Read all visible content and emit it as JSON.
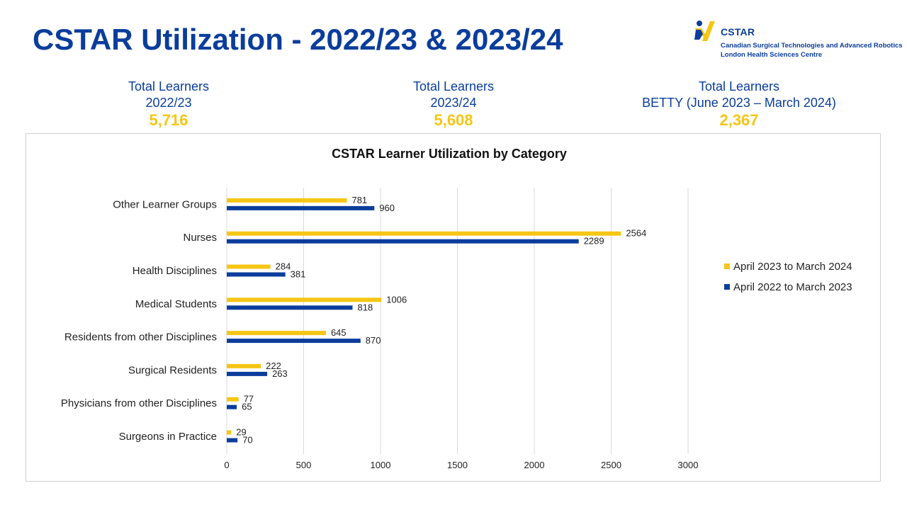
{
  "page": {
    "title": "CSTAR Utilization - 2022/23 & 2023/24"
  },
  "logo": {
    "name": "CSTAR",
    "subtitle_line1": "Canadian Surgical Technologies and Advanced Robotics",
    "subtitle_line2": "London Health Sciences Centre"
  },
  "stats": [
    {
      "label": "Total Learners",
      "period": "2022/23",
      "value": "5,716"
    },
    {
      "label": "Total Learners",
      "period": "2023/24",
      "value": "5,608"
    },
    {
      "label": "Total Learners",
      "period": "BETTY (June 2023 – March 2024)",
      "value": "2,367"
    }
  ],
  "colors": {
    "title_blue": "#0a3d9c",
    "series_2023": "#f6c615",
    "series_2022": "#0a3d9c",
    "grid": "#d9d9d9"
  },
  "chart_data": {
    "type": "bar",
    "orientation": "horizontal",
    "title": "CSTAR Learner Utilization by Category",
    "xlabel": "",
    "ylabel": "",
    "xlim": [
      0,
      3000
    ],
    "xticks": [
      0,
      500,
      1000,
      1500,
      2000,
      2500,
      3000
    ],
    "grid": true,
    "legend_position": "right",
    "categories": [
      "Other Learner Groups",
      "Nurses",
      "Health Disciplines",
      "Medical Students",
      "Residents from other Disciplines",
      "Surgical Residents",
      "Physicians from other Disciplines",
      "Surgeons in Practice"
    ],
    "series": [
      {
        "name": "April 2023 to March 2024",
        "color": "#f6c615",
        "values": [
          781,
          2564,
          284,
          1006,
          645,
          222,
          77,
          29
        ]
      },
      {
        "name": "April 2022 to March 2023",
        "color": "#0a3d9c",
        "values": [
          960,
          2289,
          381,
          818,
          870,
          263,
          65,
          70
        ]
      }
    ]
  }
}
